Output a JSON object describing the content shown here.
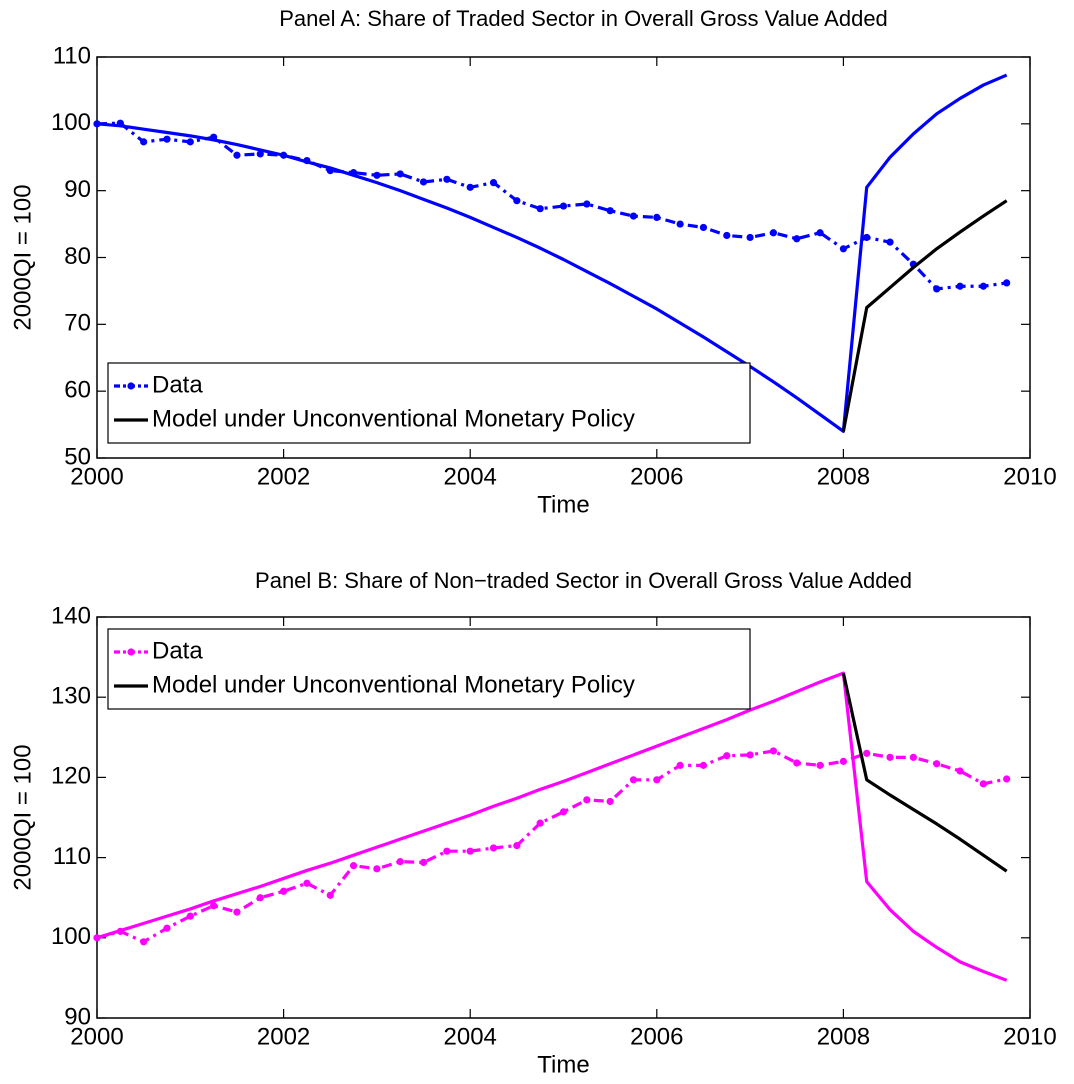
{
  "chart_data": [
    {
      "type": "line",
      "title": "Panel A: Share of Traded Sector in Overall Gross Value Added",
      "x_label": "Time",
      "y_label": "2000QI = 100",
      "x": [
        2000,
        2000.25,
        2000.5,
        2000.75,
        2001,
        2001.25,
        2001.5,
        2001.75,
        2002,
        2002.25,
        2002.5,
        2002.75,
        2003,
        2003.25,
        2003.5,
        2003.75,
        2004,
        2004.25,
        2004.5,
        2004.75,
        2005,
        2005.25,
        2005.5,
        2005.75,
        2006,
        2006.25,
        2006.5,
        2006.75,
        2007,
        2007.25,
        2007.5,
        2007.75,
        2008,
        2008.25,
        2008.5,
        2008.75,
        2009,
        2009.25,
        2009.5,
        2009.75
      ],
      "series": [
        {
          "name": "Data",
          "color": "#0000ff",
          "style": "dashdot-marker",
          "values": [
            100,
            100.1,
            97.3,
            97.7,
            97.3,
            98,
            95.3,
            95.5,
            95.3,
            94.5,
            93,
            92.7,
            92.3,
            92.5,
            91.3,
            91.7,
            90.5,
            91.2,
            88.5,
            87.3,
            87.7,
            88,
            87,
            86.2,
            86,
            85,
            84.5,
            83.3,
            83,
            83.7,
            82.8,
            83.7,
            81.3,
            83,
            82.3,
            79,
            75.3,
            75.7,
            75.7,
            76.2
          ]
        },
        {
          "color": "#0000ff",
          "style": "solid",
          "values": [
            100,
            99.7,
            99.2,
            98.7,
            98.2,
            97.6,
            96.9,
            96.1,
            95.3,
            94.3,
            93.4,
            92.3,
            91.2,
            90,
            88.7,
            87.4,
            86,
            84.5,
            83,
            81.4,
            79.7,
            77.9,
            76.1,
            74.2,
            72.3,
            70.2,
            68.1,
            65.9,
            63.7,
            61.4,
            59,
            56.5,
            54,
            90.5,
            95,
            98.5,
            101.5,
            103.8,
            105.8,
            107.3
          ]
        },
        {
          "name": "Model under Unconventional Monetary Policy",
          "color": "#000000",
          "style": "solid",
          "values": [
            null,
            null,
            null,
            null,
            null,
            null,
            null,
            null,
            null,
            null,
            null,
            null,
            null,
            null,
            null,
            null,
            null,
            null,
            null,
            null,
            null,
            null,
            null,
            null,
            null,
            null,
            null,
            null,
            null,
            null,
            null,
            null,
            54,
            72.5,
            75.5,
            78.5,
            81.3,
            83.8,
            86.2,
            88.5
          ]
        }
      ],
      "xlim": [
        2000,
        2010
      ],
      "xticks": [
        2000,
        2002,
        2004,
        2006,
        2008,
        2010
      ],
      "ylim": [
        50,
        110
      ],
      "yticks": [
        50,
        60,
        70,
        80,
        90,
        100,
        110
      ],
      "grid": false,
      "legend": "lower left"
    },
    {
      "type": "line",
      "title": "Panel B: Share of Non−traded Sector in Overall Gross Value Added",
      "x_label": "Time",
      "y_label": "2000QI = 100",
      "x": [
        2000,
        2000.25,
        2000.5,
        2000.75,
        2001,
        2001.25,
        2001.5,
        2001.75,
        2002,
        2002.25,
        2002.5,
        2002.75,
        2003,
        2003.25,
        2003.5,
        2003.75,
        2004,
        2004.25,
        2004.5,
        2004.75,
        2005,
        2005.25,
        2005.5,
        2005.75,
        2006,
        2006.25,
        2006.5,
        2006.75,
        2007,
        2007.25,
        2007.5,
        2007.75,
        2008,
        2008.25,
        2008.5,
        2008.75,
        2009,
        2009.25,
        2009.5,
        2009.75
      ],
      "series": [
        {
          "name": "Data",
          "color": "#ff00ff",
          "style": "dashdot-marker",
          "values": [
            100,
            100.8,
            99.5,
            101.2,
            102.7,
            104,
            103.2,
            105,
            105.8,
            106.8,
            105.3,
            109,
            108.6,
            109.5,
            109.4,
            110.8,
            110.8,
            111.2,
            111.5,
            114.3,
            115.7,
            117.2,
            117,
            119.7,
            119.7,
            121.5,
            121.5,
            122.7,
            122.8,
            123.3,
            121.8,
            121.5,
            122,
            123,
            122.5,
            122.5,
            121.7,
            120.8,
            119.2,
            119.8
          ]
        },
        {
          "color": "#ff00ff",
          "style": "solid",
          "values": [
            100,
            100.9,
            101.8,
            102.7,
            103.6,
            104.6,
            105.5,
            106.4,
            107.4,
            108.4,
            109.3,
            110.3,
            111.3,
            112.3,
            113.3,
            114.3,
            115.3,
            116.4,
            117.4,
            118.5,
            119.5,
            120.6,
            121.7,
            122.8,
            123.9,
            125,
            126.1,
            127.2,
            128.4,
            129.5,
            130.7,
            131.9,
            133,
            107,
            103.5,
            100.8,
            98.8,
            97,
            95.8,
            94.7
          ]
        },
        {
          "name": "Model under Unconventional Monetary Policy",
          "color": "#000000",
          "style": "solid",
          "values": [
            null,
            null,
            null,
            null,
            null,
            null,
            null,
            null,
            null,
            null,
            null,
            null,
            null,
            null,
            null,
            null,
            null,
            null,
            null,
            null,
            null,
            null,
            null,
            null,
            null,
            null,
            null,
            null,
            null,
            null,
            null,
            null,
            133,
            119.7,
            117.8,
            116,
            114.2,
            112.3,
            110.3,
            108.3
          ]
        }
      ],
      "xlim": [
        2000,
        2010
      ],
      "xticks": [
        2000,
        2002,
        2004,
        2006,
        2008,
        2010
      ],
      "ylim": [
        90,
        140
      ],
      "yticks": [
        90,
        100,
        110,
        120,
        130,
        140
      ],
      "grid": false,
      "legend": "upper left"
    }
  ]
}
